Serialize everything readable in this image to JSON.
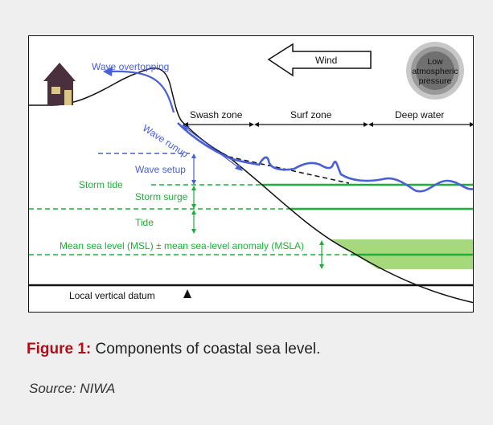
{
  "diagram": {
    "labels": {
      "wave_overtopping": "Wave overtopping",
      "wind": "Wind",
      "pressure": [
        "Low",
        "atmospheric",
        "pressure"
      ],
      "wave_runup": "Wave runup",
      "swash_zone": "Swash zone",
      "surf_zone": "Surf zone",
      "deep_water": "Deep water",
      "wave_setup": "Wave setup",
      "storm_tide": "Storm tide",
      "storm_surge": "Storm surge",
      "tide": "Tide",
      "msl": "Mean sea level (MSL) ± mean sea-level anomaly (MSLA)",
      "local_datum": "Local vertical datum"
    },
    "colors": {
      "blue": "#4a5fd6",
      "green": "#1fae3a",
      "light_green": "#a6d97c",
      "house_roof": "#4a2f3d",
      "house_wall": "#d9c78a"
    },
    "icons": [
      "house-icon",
      "wind-arrow-icon",
      "low-pressure-icon",
      "datum-triangle-icon"
    ]
  },
  "caption": {
    "label": "Figure 1:",
    "text": " Components of coastal sea level."
  },
  "source": "Source: NIWA"
}
